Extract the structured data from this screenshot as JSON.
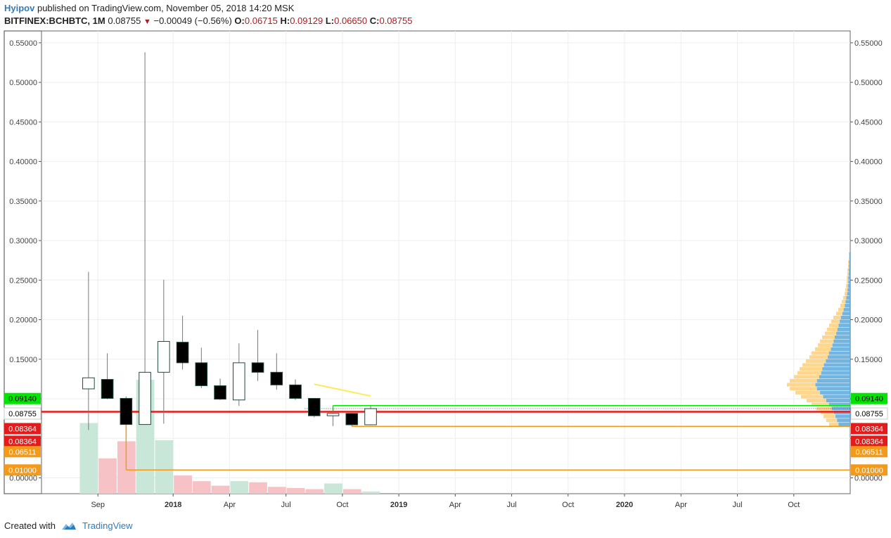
{
  "header": {
    "author": "Hyipov",
    "published_text": "published on TradingView.com, November 05, 2018 14:20 MSK",
    "symbol": "BITFINEX:BCHBTC, 1M",
    "last": "0.08755",
    "change": "−0.00049 (−0.56%)",
    "o_label": "O:",
    "o_value": "0.06715",
    "h_label": "H:",
    "h_value": "0.09129",
    "l_label": "L:",
    "l_value": "0.06650",
    "c_label": "C:",
    "c_value": "0.08755"
  },
  "footer": {
    "created_with": "Created with",
    "brand": "TradingView"
  },
  "colors": {
    "grid": "#eeeeee",
    "axis": "#555555",
    "bear_body": "#000000",
    "bull_body": "#ffffff",
    "candle_border": "#1f4b3a",
    "wick": "#777777",
    "vol_bull": "#c9e7d8",
    "vol_bear": "#f6c2c6",
    "red_line": "#e51b1b",
    "green_line": "#00e600",
    "orange_line": "#f39a1b",
    "yellow_line": "#ffea5c",
    "vp_up": "#ffcf79",
    "vp_down": "#5aa8dc"
  },
  "chart_data": {
    "type": "candlestick",
    "y_axis": {
      "min": -0.02,
      "max": 0.565,
      "ticks": [
        "0.55000",
        "0.50000",
        "0.45000",
        "0.40000",
        "0.35000",
        "0.30000",
        "0.25000",
        "0.20000",
        "0.15000",
        "0.10000",
        "0.05000",
        "0.00000"
      ]
    },
    "x_axis": {
      "labels": [
        {
          "label": "Sep",
          "bold": false,
          "month": "2017-09"
        },
        {
          "label": "2018",
          "bold": true,
          "month": "2018-01"
        },
        {
          "label": "Apr",
          "bold": false,
          "month": "2018-04"
        },
        {
          "label": "Jul",
          "bold": false,
          "month": "2018-07"
        },
        {
          "label": "Oct",
          "bold": false,
          "month": "2018-10"
        },
        {
          "label": "2019",
          "bold": true,
          "month": "2019-01"
        },
        {
          "label": "Apr",
          "bold": false,
          "month": "2019-04"
        },
        {
          "label": "Jul",
          "bold": false,
          "month": "2019-07"
        },
        {
          "label": "Oct",
          "bold": false,
          "month": "2019-10"
        },
        {
          "label": "2020",
          "bold": true,
          "month": "2020-01"
        },
        {
          "label": "Apr",
          "bold": false,
          "month": "2020-04"
        },
        {
          "label": "Jul",
          "bold": false,
          "month": "2020-07"
        },
        {
          "label": "Oct",
          "bold": false,
          "month": "2020-10"
        }
      ],
      "range_months": [
        "2017-06",
        "2021-01"
      ]
    },
    "candles": [
      {
        "month": "2017-08",
        "o": 0.1125,
        "h": 0.2605,
        "l": 0.0605,
        "c": 0.1265
      },
      {
        "month": "2017-09",
        "o": 0.1245,
        "h": 0.1575,
        "l": 0.0995,
        "c": 0.1005
      },
      {
        "month": "2017-10",
        "o": 0.1005,
        "h": 0.103,
        "l": 0.0705,
        "c": 0.0675
      },
      {
        "month": "2017-11",
        "o": 0.0675,
        "h": 0.538,
        "l": 0.067,
        "c": 0.1335
      },
      {
        "month": "2017-12",
        "o": 0.1335,
        "h": 0.2505,
        "l": 0.0685,
        "c": 0.1725
      },
      {
        "month": "2018-01",
        "o": 0.1715,
        "h": 0.205,
        "l": 0.137,
        "c": 0.1455
      },
      {
        "month": "2018-02",
        "o": 0.1455,
        "h": 0.1645,
        "l": 0.1135,
        "c": 0.1165
      },
      {
        "month": "2018-03",
        "o": 0.1165,
        "h": 0.1255,
        "l": 0.0985,
        "c": 0.0995
      },
      {
        "month": "2018-04",
        "o": 0.0985,
        "h": 0.17,
        "l": 0.091,
        "c": 0.1455
      },
      {
        "month": "2018-05",
        "o": 0.1455,
        "h": 0.187,
        "l": 0.1225,
        "c": 0.1335
      },
      {
        "month": "2018-06",
        "o": 0.1335,
        "h": 0.1575,
        "l": 0.1115,
        "c": 0.1175
      },
      {
        "month": "2018-07",
        "o": 0.1175,
        "h": 0.1245,
        "l": 0.0985,
        "c": 0.1005
      },
      {
        "month": "2018-08",
        "o": 0.1005,
        "h": 0.1005,
        "l": 0.0765,
        "c": 0.0785
      },
      {
        "month": "2018-09",
        "o": 0.0785,
        "h": 0.0885,
        "l": 0.0655,
        "c": 0.0815
      },
      {
        "month": "2018-10",
        "o": 0.0815,
        "h": 0.082,
        "l": 0.0655,
        "c": 0.0671
      },
      {
        "month": "2018-11",
        "o": 0.06715,
        "h": 0.09129,
        "l": 0.0665,
        "c": 0.08755
      }
    ],
    "volume": [
      {
        "month": "2017-08",
        "v": 0.62,
        "dir": "up"
      },
      {
        "month": "2017-09",
        "v": 0.31,
        "dir": "down"
      },
      {
        "month": "2017-10",
        "v": 0.46,
        "dir": "down"
      },
      {
        "month": "2017-11",
        "v": 1.0,
        "dir": "up"
      },
      {
        "month": "2017-12",
        "v": 0.47,
        "dir": "up"
      },
      {
        "month": "2018-01",
        "v": 0.16,
        "dir": "down"
      },
      {
        "month": "2018-02",
        "v": 0.11,
        "dir": "down"
      },
      {
        "month": "2018-03",
        "v": 0.07,
        "dir": "down"
      },
      {
        "month": "2018-04",
        "v": 0.11,
        "dir": "up"
      },
      {
        "month": "2018-05",
        "v": 0.1,
        "dir": "down"
      },
      {
        "month": "2018-06",
        "v": 0.06,
        "dir": "down"
      },
      {
        "month": "2018-07",
        "v": 0.05,
        "dir": "down"
      },
      {
        "month": "2018-08",
        "v": 0.04,
        "dir": "down"
      },
      {
        "month": "2018-09",
        "v": 0.09,
        "dir": "up"
      },
      {
        "month": "2018-10",
        "v": 0.04,
        "dir": "down"
      },
      {
        "month": "2018-11",
        "v": 0.02,
        "dir": "up"
      }
    ],
    "levels": [
      {
        "name": "green",
        "price": 0.0914,
        "label": "0.09140",
        "color": "#00e600",
        "text": "#000000",
        "from_month": "2018-09",
        "thickness": 1.5
      },
      {
        "name": "current",
        "price": 0.08755,
        "label": "0.08755",
        "color": "#ffffff",
        "text": "#000000",
        "from_month": "2017-06",
        "thickness": 0,
        "dotted_from": "2018-08"
      },
      {
        "name": "red",
        "price": 0.0836,
        "label": "0.08364",
        "color": "#e51b1b",
        "text": "#ffffff",
        "from_month": "2017-06",
        "thickness": 2.5
      },
      {
        "name": "red2",
        "price": 0.0836,
        "label": "0.08364",
        "color": "#e51b1b",
        "text": "#ffffff",
        "from_month": null,
        "thickness": 0,
        "label_offset": 1
      },
      {
        "name": "orange",
        "price": 0.0651,
        "label": "0.06511",
        "color": "#f39a1b",
        "text": "#ffffff",
        "from_month": "2018-10",
        "thickness": 1.5
      },
      {
        "name": "orange2",
        "price": 0.01,
        "label": "0.01000",
        "color": "#f39a1b",
        "text": "#ffffff",
        "from_month": "2017-10",
        "thickness": 1.5
      }
    ],
    "trendline": {
      "from": {
        "month": "2018-08",
        "price": 0.1185
      },
      "to": {
        "month": "2018-11",
        "price": 0.1035
      },
      "color": "#ffea5c"
    },
    "volume_profile": {
      "price_min": 0.065,
      "price_max": 0.285,
      "rows": [
        0.3,
        0.34,
        0.38,
        0.42,
        0.48,
        0.55,
        0.62,
        0.7,
        0.78,
        0.86,
        0.9,
        0.86,
        0.8,
        0.75,
        0.72,
        0.68,
        0.63,
        0.58,
        0.55,
        0.5,
        0.46,
        0.43,
        0.4,
        0.36,
        0.33,
        0.3,
        0.27,
        0.24,
        0.2,
        0.17,
        0.14,
        0.12,
        0.1,
        0.08,
        0.07,
        0.06,
        0.05,
        0.05,
        0.04,
        0.04,
        0.03,
        0.03,
        0.02,
        0.02
      ]
    }
  }
}
